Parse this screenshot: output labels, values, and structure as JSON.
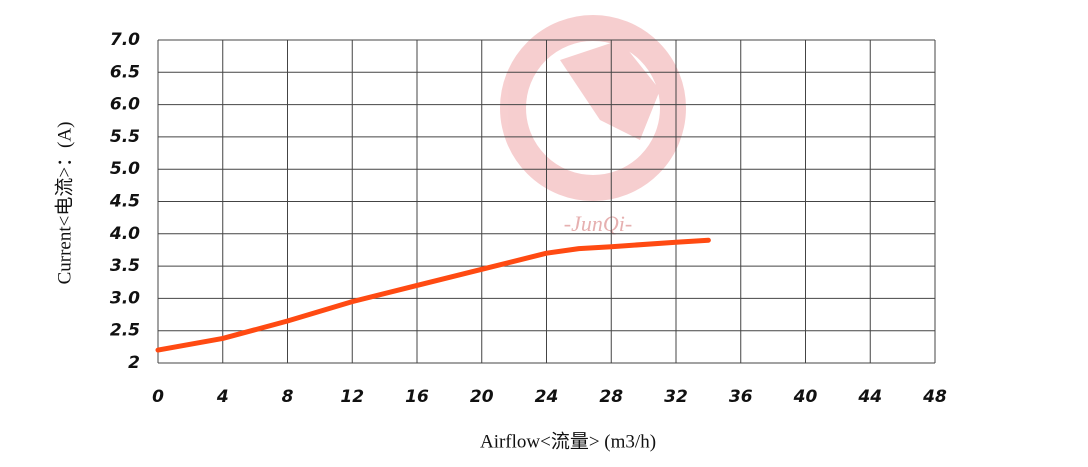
{
  "chart_data": {
    "type": "line",
    "x_label": "Airflow<流量> (m3/h)",
    "y_label": "Current<电流>：(A)",
    "watermark": "-JunQi-",
    "x": [
      0,
      4,
      8,
      12,
      16,
      20,
      24,
      26,
      28,
      32,
      34
    ],
    "series": [
      {
        "color": "#ff4a12",
        "values": [
          2.2,
          2.38,
          2.65,
          2.95,
          3.2,
          3.45,
          3.7,
          3.77,
          3.8,
          3.87,
          3.9
        ]
      }
    ],
    "xlim": [
      0,
      48
    ],
    "xticks": [
      0,
      4,
      8,
      12,
      16,
      20,
      24,
      28,
      32,
      36,
      40,
      44,
      48
    ],
    "ylim": [
      2,
      7
    ],
    "yticks": [
      2,
      2.5,
      {
        "value": 3,
        "label": "3.0"
      },
      3.5,
      {
        "value": 4,
        "label": "4.0"
      },
      4.5,
      {
        "value": 5,
        "label": "5.0"
      },
      5.5,
      {
        "value": 6,
        "label": "6.0"
      },
      6.5,
      {
        "value": 7,
        "label": "7.0"
      }
    ],
    "grid": true
  }
}
